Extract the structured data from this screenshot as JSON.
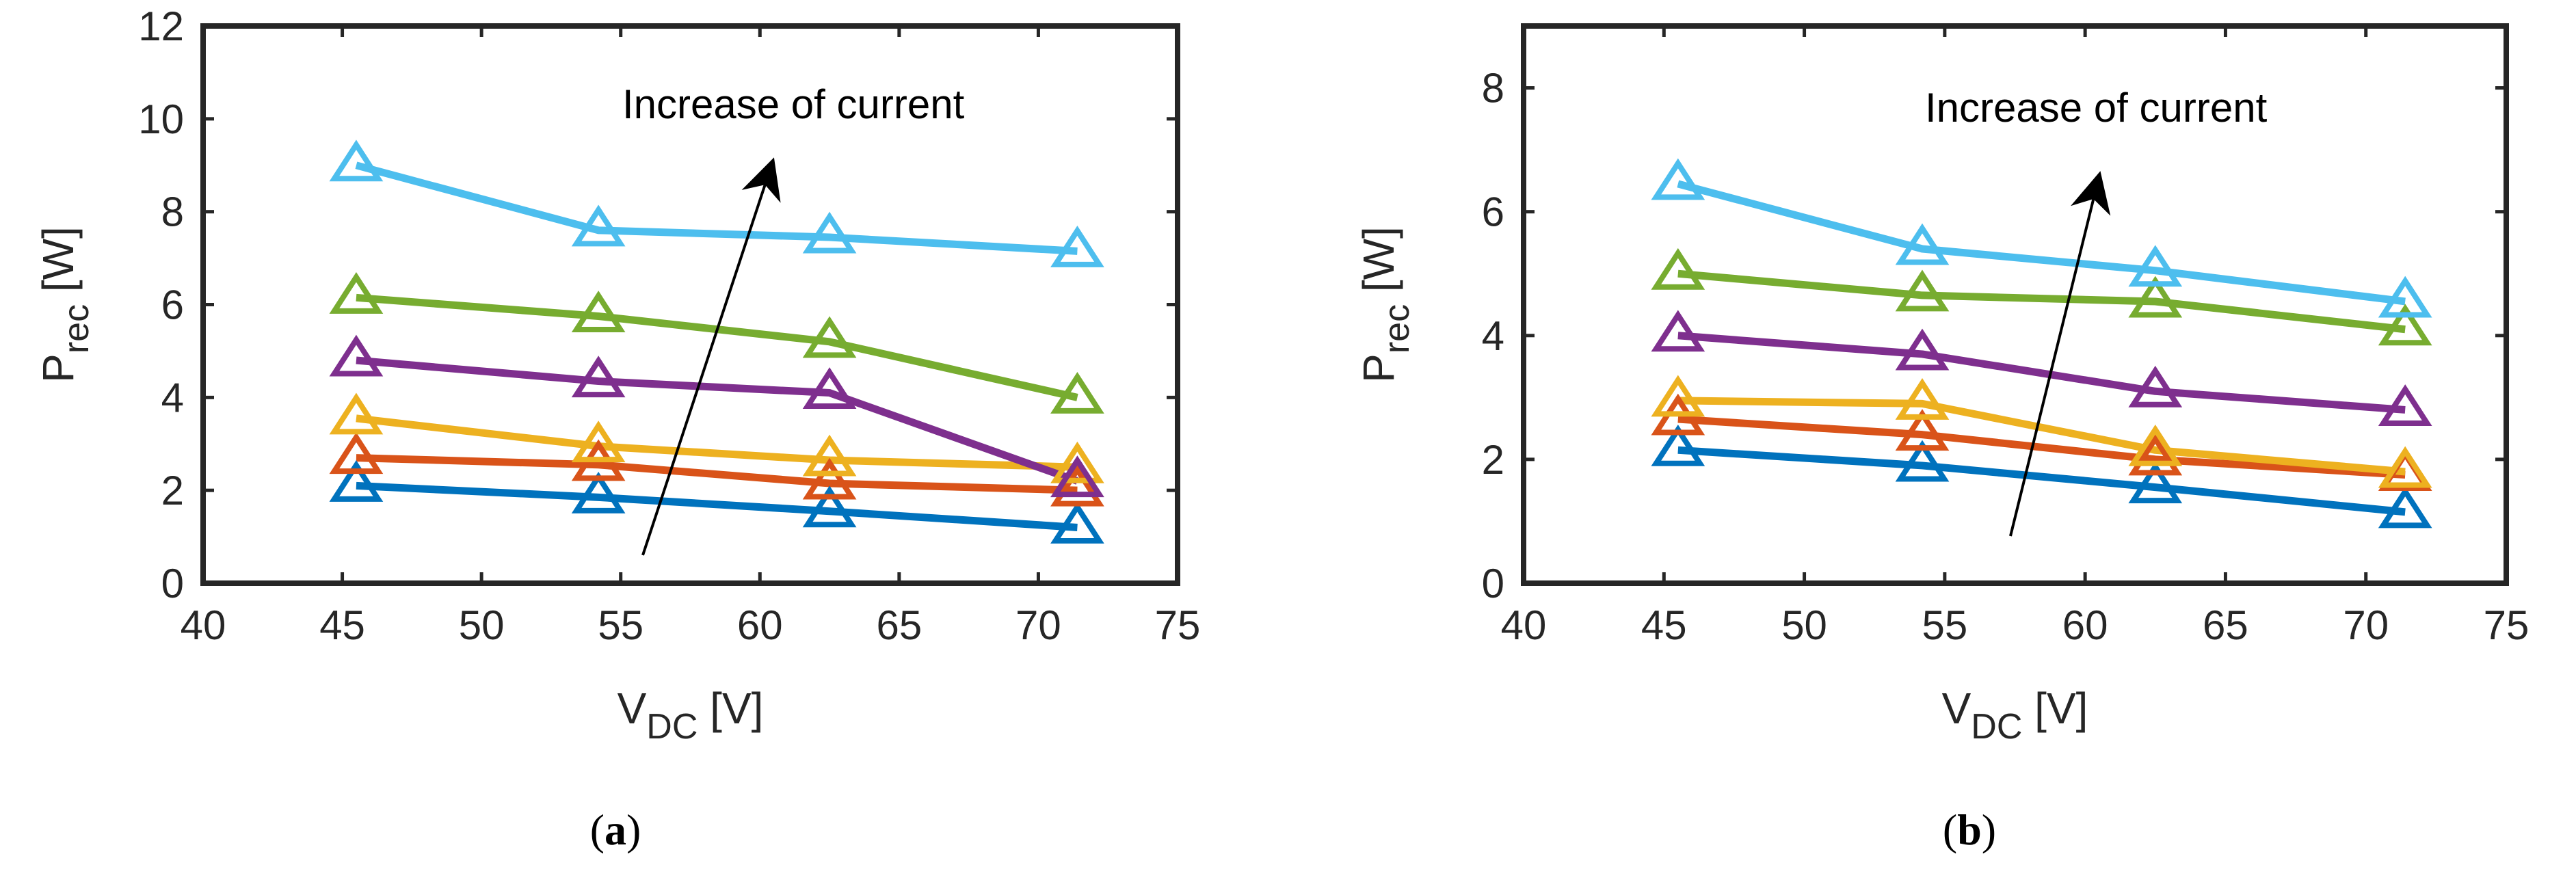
{
  "chart_data": [
    {
      "type": "line",
      "panel_label": "a",
      "xlabel_main": "V",
      "xlabel_sub": "DC",
      "xlabel_unit": "[V]",
      "ylabel_main": "P",
      "ylabel_sub": "rec",
      "ylabel_unit": "[W]",
      "xlim": [
        40,
        75
      ],
      "ylim": [
        0,
        12
      ],
      "xticks": [
        40,
        45,
        50,
        55,
        60,
        65,
        70,
        75
      ],
      "yticks": [
        0,
        2,
        4,
        6,
        8,
        10,
        12
      ],
      "x": [
        45.5,
        54.2,
        62.5,
        71.4
      ],
      "marker": "triangle",
      "annotation": "Increase of current",
      "series": [
        {
          "name": "blue",
          "color": "#0072BD",
          "values": [
            2.1,
            1.85,
            1.55,
            1.2
          ]
        },
        {
          "name": "orange",
          "color": "#D95319",
          "values": [
            2.7,
            2.55,
            2.15,
            2.0
          ]
        },
        {
          "name": "yellow",
          "color": "#EDB120",
          "values": [
            3.55,
            2.95,
            2.65,
            2.5
          ]
        },
        {
          "name": "purple",
          "color": "#7E2F8E",
          "values": [
            4.8,
            4.35,
            4.1,
            2.2
          ]
        },
        {
          "name": "green",
          "color": "#77AC30",
          "values": [
            6.15,
            5.75,
            5.2,
            4.0
          ]
        },
        {
          "name": "cyan",
          "color": "#4DBEEE",
          "values": [
            9.0,
            7.6,
            7.45,
            7.15
          ]
        }
      ]
    },
    {
      "type": "line",
      "panel_label": "b",
      "xlabel_main": "V",
      "xlabel_sub": "DC",
      "xlabel_unit": "[V]",
      "ylabel_main": "P",
      "ylabel_sub": "rec",
      "ylabel_unit": "[W]",
      "xlim": [
        40,
        75
      ],
      "ylim": [
        0,
        9
      ],
      "xticks": [
        40,
        45,
        50,
        55,
        60,
        65,
        70,
        75
      ],
      "yticks": [
        0,
        2,
        4,
        6,
        8
      ],
      "x": [
        45.5,
        54.2,
        62.5,
        71.4
      ],
      "marker": "triangle",
      "annotation": "Increase of current",
      "series": [
        {
          "name": "blue",
          "color": "#0072BD",
          "values": [
            2.15,
            1.9,
            1.55,
            1.15
          ]
        },
        {
          "name": "orange",
          "color": "#D95319",
          "values": [
            2.65,
            2.4,
            2.0,
            1.75
          ]
        },
        {
          "name": "yellow",
          "color": "#EDB120",
          "values": [
            2.95,
            2.9,
            2.15,
            1.8
          ]
        },
        {
          "name": "purple",
          "color": "#7E2F8E",
          "values": [
            4.0,
            3.7,
            3.1,
            2.8
          ]
        },
        {
          "name": "green",
          "color": "#77AC30",
          "values": [
            5.0,
            4.65,
            4.55,
            4.1
          ]
        },
        {
          "name": "cyan",
          "color": "#4DBEEE",
          "values": [
            6.45,
            5.4,
            5.05,
            4.55
          ]
        }
      ]
    }
  ]
}
